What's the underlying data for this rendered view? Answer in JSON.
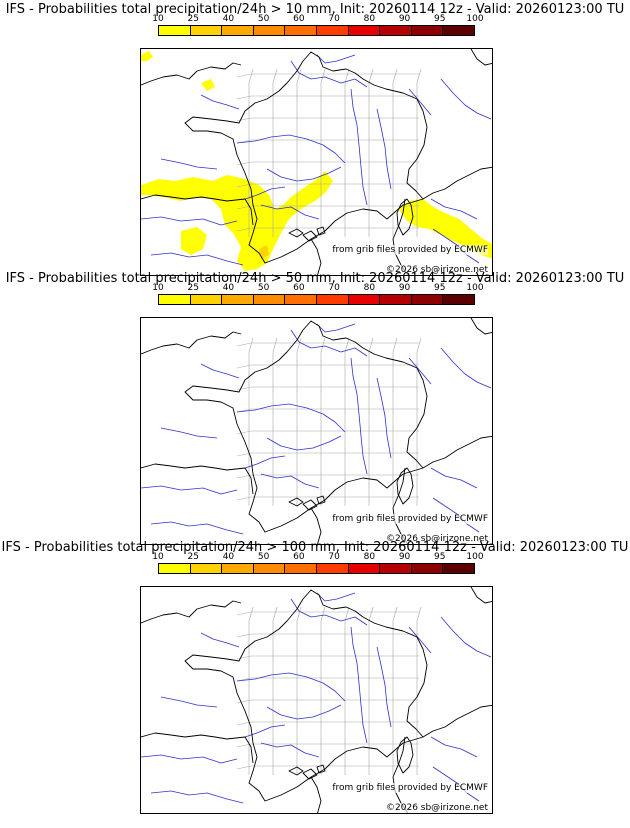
{
  "colorbar": {
    "labels": [
      "10",
      "25",
      "40",
      "50",
      "60",
      "70",
      "80",
      "90",
      "95",
      "100"
    ],
    "colors": [
      "#ffff00",
      "#ffd200",
      "#ffaa00",
      "#ff8c00",
      "#ff6e00",
      "#ff3c00",
      "#e60000",
      "#b40000",
      "#8c0000",
      "#5a0000"
    ]
  },
  "colors": {
    "coast": "#000000",
    "rivers": "#3030d0",
    "departments": "#a8a8a8",
    "probability": "#ffff00",
    "probability_high": "#ffd200"
  },
  "panels": [
    {
      "title": "IFS - Probabilities total precipitation/24h > 10 mm, Init: 20260114 12z - Valid: 20260123:00 TU",
      "credit_grib": "from grib files provided by ECMWF",
      "credit_site": "©2026 sb@irizone.net",
      "has_precip": true
    },
    {
      "title": "IFS - Probabilities total precipitation/24h > 50 mm, Init: 20260114 12z - Valid: 20260123:00 TU",
      "credit_grib": "from grib files provided by ECMWF",
      "credit_site": "©2026 sb@irizone.net",
      "has_precip": false
    },
    {
      "title": "IFS - Probabilities total precipitation/24h > 100 mm, Init: 20260114 12z - Valid: 20260123:00 TU",
      "credit_grib": "from grib files provided by ECMWF",
      "credit_site": "©2026 sb@irizone.net",
      "has_precip": false
    }
  ]
}
